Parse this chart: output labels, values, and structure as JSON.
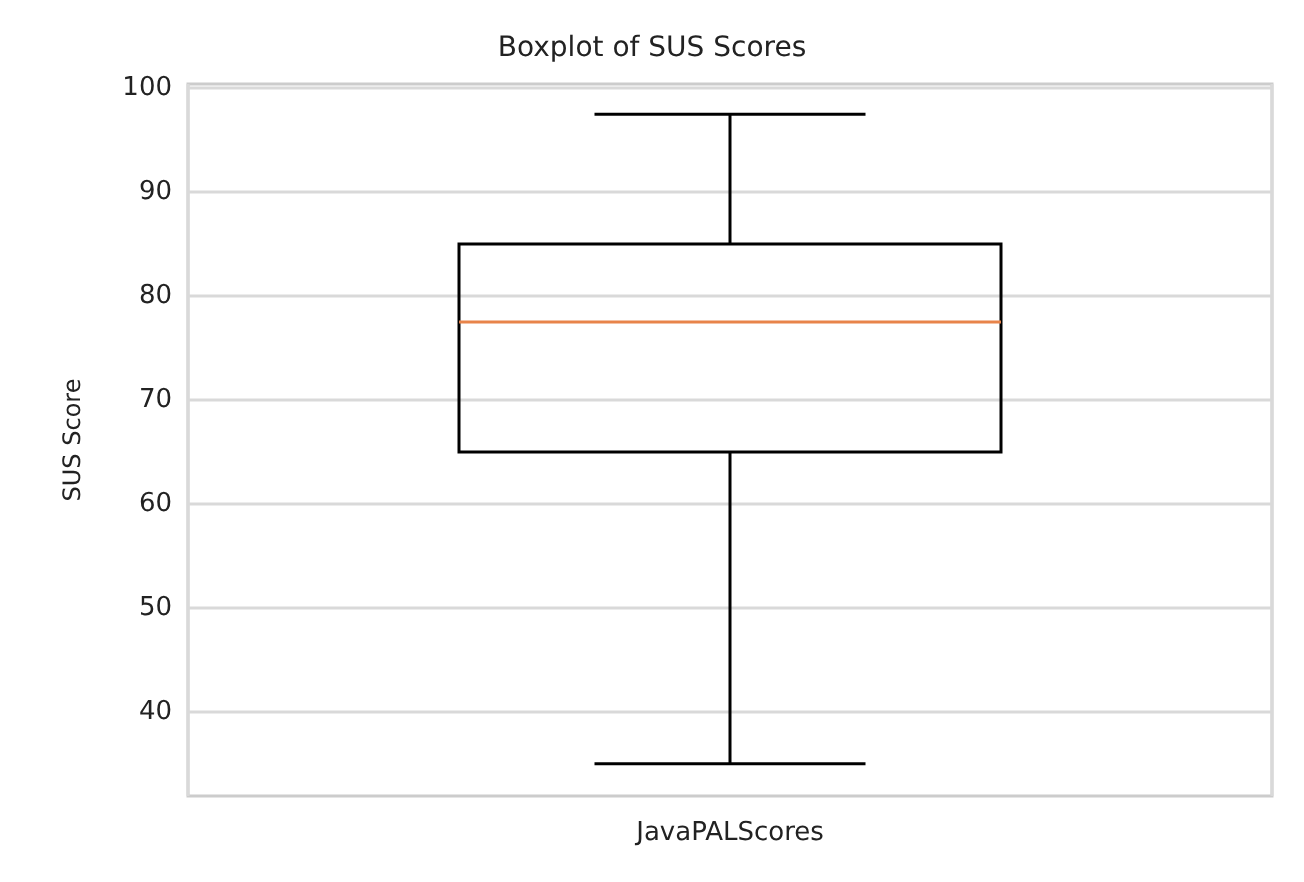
{
  "chart_data": {
    "type": "box",
    "title": "Boxplot of SUS Scores",
    "ylabel": "SUS Score",
    "categories": [
      "JavaPALScores"
    ],
    "series": [
      {
        "color": "#000000",
        "boxes": [
          {
            "low": 35,
            "q1": 65,
            "median": 77.5,
            "q3": 85,
            "high": 97.5
          }
        ]
      }
    ],
    "ylim": [
      31.9,
      100.4
    ],
    "yticks": [
      40,
      50,
      60,
      70,
      80,
      90,
      100
    ],
    "grid": true
  }
}
